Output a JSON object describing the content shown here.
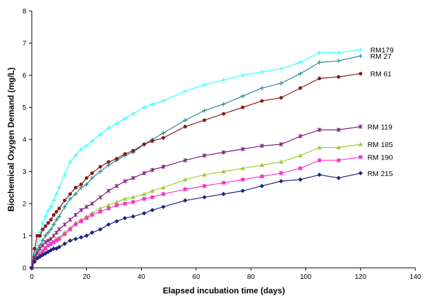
{
  "chart_data": {
    "type": "line",
    "xlabel": "Elapsed incubation time (days)",
    "ylabel": "Biochemical Oxygen Demand (mg/L)",
    "xlim": [
      0,
      140
    ],
    "ylim": [
      0,
      8
    ],
    "xticks": [
      0,
      20,
      40,
      60,
      80,
      100,
      120,
      140
    ],
    "yticks": [
      0,
      1,
      2,
      3,
      4,
      5,
      6,
      7,
      8
    ],
    "grid": false,
    "legend": "inline labels at right end of each series",
    "series": [
      {
        "name": "RM179",
        "color": "#33ffff",
        "marker": "plus",
        "x": [
          0,
          1,
          2,
          3,
          4,
          5,
          6,
          7,
          8,
          9,
          10,
          12,
          14,
          16,
          18,
          20,
          22,
          25,
          28,
          31,
          34,
          37,
          41,
          44,
          48,
          56,
          63,
          70,
          77,
          84,
          91,
          98,
          105,
          112,
          120
        ],
        "y": [
          0,
          0.4,
          0.7,
          1.1,
          1.4,
          1.6,
          1.8,
          1.9,
          2.1,
          2.3,
          2.5,
          2.9,
          3.3,
          3.5,
          3.7,
          3.8,
          3.95,
          4.15,
          4.35,
          4.5,
          4.65,
          4.8,
          5.0,
          5.1,
          5.2,
          5.5,
          5.7,
          5.85,
          6.0,
          6.1,
          6.2,
          6.4,
          6.7,
          6.7,
          6.8
        ]
      },
      {
        "name": "RM 27",
        "color": "#2e8b8b",
        "marker": "plus",
        "x": [
          0,
          1,
          2,
          3,
          4,
          5,
          6,
          7,
          8,
          9,
          10,
          12,
          14,
          16,
          18,
          20,
          22,
          25,
          28,
          31,
          34,
          37,
          41,
          44,
          48,
          56,
          63,
          70,
          77,
          84,
          91,
          98,
          105,
          112,
          120
        ],
        "y": [
          0,
          0.35,
          0.55,
          0.7,
          0.85,
          1.0,
          1.1,
          1.2,
          1.35,
          1.5,
          1.6,
          1.9,
          2.15,
          2.3,
          2.5,
          2.6,
          2.8,
          3.0,
          3.2,
          3.35,
          3.5,
          3.6,
          3.85,
          4.0,
          4.2,
          4.6,
          4.9,
          5.1,
          5.35,
          5.6,
          5.75,
          6.05,
          6.4,
          6.45,
          6.6
        ]
      },
      {
        "name": "RM 61",
        "color": "#8b1a1a",
        "marker": "circle",
        "x": [
          0,
          1,
          2,
          3,
          4,
          5,
          6,
          7,
          8,
          9,
          10,
          12,
          14,
          16,
          18,
          20,
          22,
          25,
          28,
          31,
          34,
          37,
          41,
          44,
          48,
          56,
          63,
          70,
          77,
          84,
          91,
          98,
          105,
          112,
          120
        ],
        "y": [
          0,
          0.6,
          1.0,
          1.0,
          1.2,
          1.3,
          1.4,
          1.5,
          1.65,
          1.75,
          1.85,
          2.1,
          2.3,
          2.5,
          2.6,
          2.8,
          2.95,
          3.15,
          3.3,
          3.4,
          3.55,
          3.65,
          3.85,
          3.95,
          4.05,
          4.4,
          4.6,
          4.8,
          5.0,
          5.2,
          5.3,
          5.6,
          5.9,
          5.95,
          6.05
        ]
      },
      {
        "name": "RM 119",
        "color": "#7b1f7b",
        "marker": "star",
        "x": [
          0,
          1,
          2,
          3,
          4,
          5,
          6,
          7,
          8,
          9,
          10,
          12,
          14,
          16,
          18,
          20,
          22,
          25,
          28,
          31,
          34,
          37,
          41,
          44,
          48,
          56,
          63,
          70,
          77,
          84,
          91,
          98,
          105,
          112,
          120
        ],
        "y": [
          0,
          0.3,
          0.45,
          0.6,
          0.7,
          0.8,
          0.85,
          0.9,
          1.0,
          1.1,
          1.2,
          1.35,
          1.5,
          1.65,
          1.8,
          1.9,
          2.0,
          2.2,
          2.4,
          2.55,
          2.7,
          2.8,
          2.95,
          3.05,
          3.15,
          3.35,
          3.5,
          3.6,
          3.7,
          3.8,
          3.85,
          4.1,
          4.3,
          4.3,
          4.4
        ]
      },
      {
        "name": "RM 185",
        "color": "#9acd32",
        "marker": "triangle",
        "x": [
          0,
          1,
          2,
          3,
          4,
          5,
          6,
          7,
          8,
          9,
          10,
          12,
          14,
          16,
          18,
          20,
          22,
          25,
          28,
          31,
          34,
          37,
          41,
          44,
          48,
          56,
          63,
          70,
          77,
          84,
          91,
          98,
          105,
          112,
          120
        ],
        "y": [
          0,
          0.2,
          0.35,
          0.45,
          0.55,
          0.65,
          0.7,
          0.75,
          0.8,
          0.9,
          0.95,
          1.1,
          1.25,
          1.4,
          1.5,
          1.6,
          1.7,
          1.85,
          1.95,
          2.05,
          2.15,
          2.2,
          2.3,
          2.4,
          2.5,
          2.75,
          2.9,
          3.0,
          3.1,
          3.2,
          3.3,
          3.5,
          3.75,
          3.75,
          3.85
        ]
      },
      {
        "name": "RM 190",
        "color": "#ff33cc",
        "marker": "square",
        "x": [
          0,
          1,
          2,
          3,
          4,
          5,
          6,
          7,
          8,
          9,
          10,
          12,
          14,
          16,
          18,
          20,
          22,
          25,
          28,
          31,
          34,
          37,
          41,
          44,
          48,
          56,
          63,
          70,
          77,
          84,
          91,
          98,
          105,
          112,
          120
        ],
        "y": [
          0,
          0.2,
          0.3,
          0.4,
          0.5,
          0.6,
          0.7,
          0.75,
          0.8,
          0.85,
          0.9,
          1.05,
          1.2,
          1.35,
          1.45,
          1.55,
          1.65,
          1.75,
          1.85,
          1.95,
          2.0,
          2.05,
          2.15,
          2.2,
          2.3,
          2.45,
          2.55,
          2.65,
          2.75,
          2.85,
          2.95,
          3.1,
          3.35,
          3.35,
          3.45
        ]
      },
      {
        "name": "RM 215",
        "color": "#1a237e",
        "marker": "diamond",
        "x": [
          0,
          1,
          2,
          3,
          4,
          5,
          6,
          7,
          8,
          9,
          10,
          12,
          14,
          16,
          18,
          20,
          22,
          25,
          28,
          31,
          34,
          37,
          41,
          44,
          48,
          56,
          63,
          70,
          77,
          84,
          91,
          98,
          105,
          112,
          120
        ],
        "y": [
          0,
          0.2,
          0.3,
          0.35,
          0.4,
          0.45,
          0.5,
          0.55,
          0.6,
          0.6,
          0.65,
          0.75,
          0.85,
          0.9,
          0.95,
          1.0,
          1.1,
          1.2,
          1.35,
          1.45,
          1.55,
          1.6,
          1.7,
          1.8,
          1.9,
          2.1,
          2.2,
          2.3,
          2.4,
          2.55,
          2.7,
          2.75,
          2.9,
          2.8,
          2.95
        ]
      }
    ]
  }
}
